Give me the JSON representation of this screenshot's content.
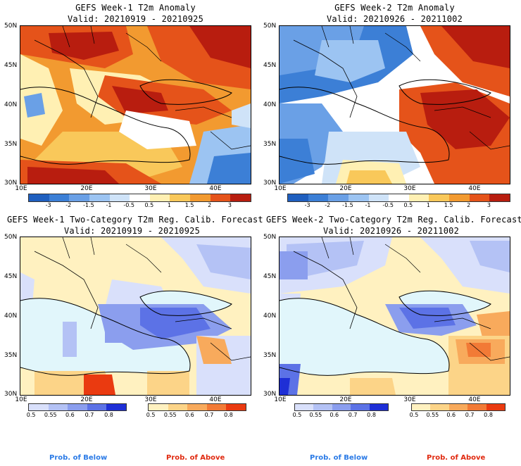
{
  "panels": [
    {
      "title": "GEFS Week-1 T2m Anomaly",
      "valid": "Valid: 20210919 - 20210925"
    },
    {
      "title": "GEFS Week-2 T2m Anomaly",
      "valid": "Valid: 20210926 - 20211002"
    },
    {
      "title": "GEFS Week-1 Two-Category T2m Reg. Calib. Forecast",
      "valid": "Valid: 20210919 - 20210925"
    },
    {
      "title": "GEFS Week-2 Two-Category T2m Reg. Calib. Forecast",
      "valid": "Valid: 20210926 - 20211002"
    }
  ],
  "axes": {
    "lat_labels": [
      "50N",
      "45N",
      "40N",
      "35N",
      "30N"
    ],
    "lon_labels": [
      "10E",
      "20E",
      "30E",
      "40E"
    ]
  },
  "anomaly_colorbar": {
    "ticks": [
      "-3",
      "-2",
      "-1.5",
      "-1",
      "-0.5",
      "0.5",
      "1",
      "1.5",
      "2",
      "3"
    ],
    "colors": [
      "#1f5fbf",
      "#3c7fd6",
      "#6aa0e6",
      "#9cc4f2",
      "#cfe3f8",
      "#ffffff",
      "#fff0b3",
      "#f9c85a",
      "#f29a30",
      "#e5531a",
      "#b81d0f"
    ]
  },
  "prob_colorbar": {
    "below_ticks": [
      "0.5",
      "0.55",
      "0.6",
      "0.7",
      "0.8"
    ],
    "above_ticks": [
      "0.5",
      "0.55",
      "0.6",
      "0.7",
      "0.8"
    ],
    "below_colors": [
      "#d9e0fb",
      "#b4c2f5",
      "#8b9eee",
      "#5c72e6",
      "#1e2fd6"
    ],
    "above_colors": [
      "#fff1c0",
      "#fcd488",
      "#f8aa5c",
      "#f27a36",
      "#ea3a10"
    ],
    "below_label": "Prob. of Below",
    "above_label": "Prob. of Above",
    "below_label_color": "#2a7ae6",
    "above_label_color": "#e02a10"
  },
  "colors": {
    "sea_light": "#e1f6fb",
    "coast": "#000000"
  }
}
